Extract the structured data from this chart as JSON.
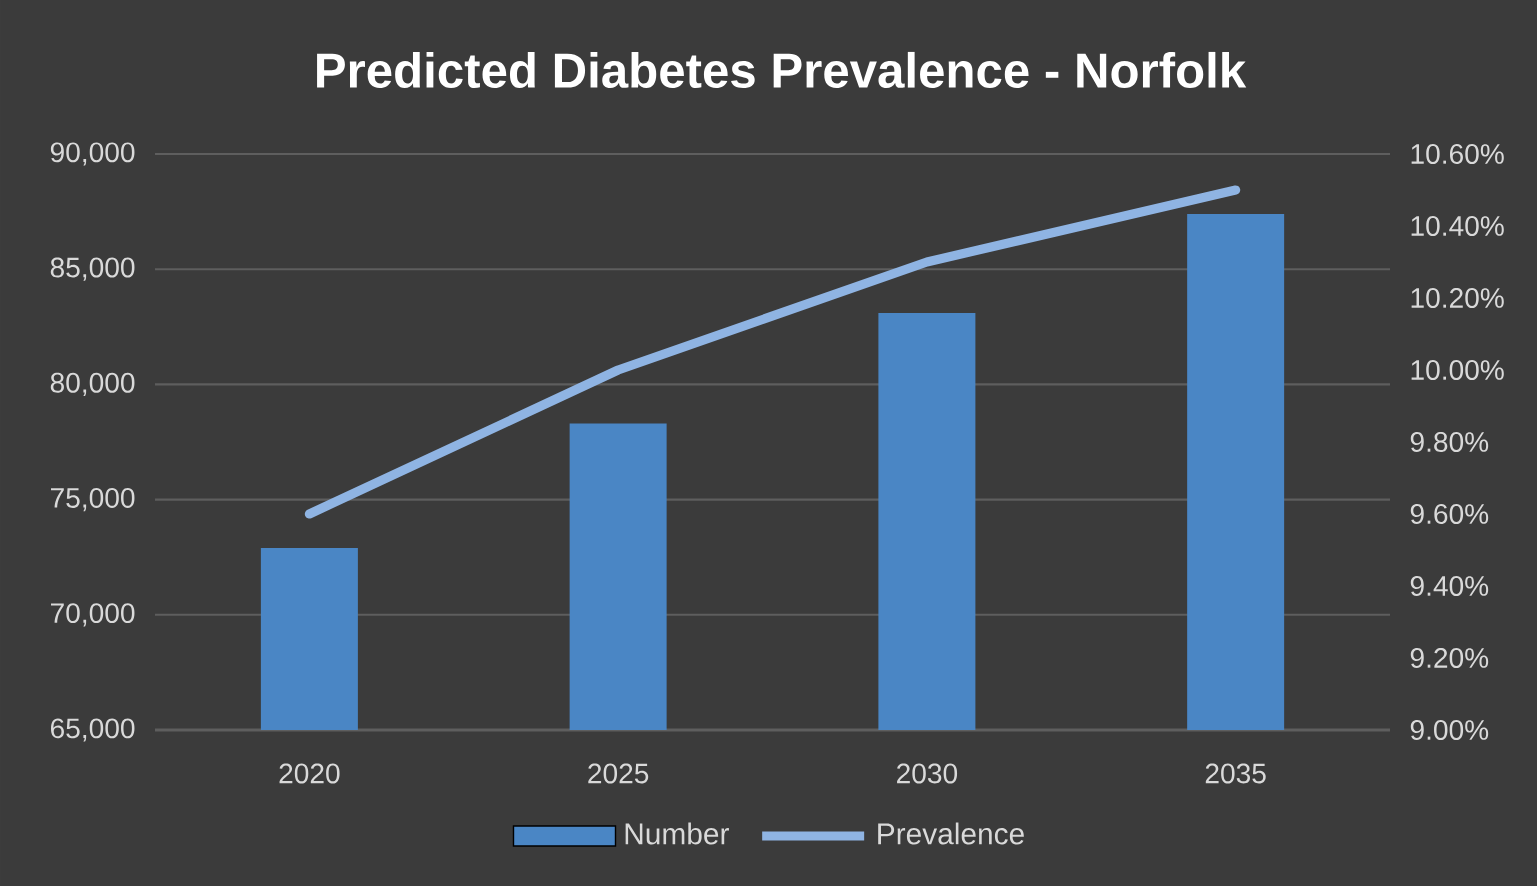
{
  "chart_data": {
    "type": "bar",
    "title": "Predicted Diabetes Prevalence - Norfolk",
    "categories": [
      "2020",
      "2025",
      "2030",
      "2035"
    ],
    "series": [
      {
        "name": "Number",
        "color": "#4a86c5",
        "values": [
          72900,
          78300,
          83100,
          87400
        ]
      },
      {
        "name": "Prevalence",
        "type": "line",
        "axis": "y2",
        "color": "#8fb4e3",
        "values": [
          9.6,
          10.0,
          10.3,
          10.5
        ]
      }
    ],
    "ylim": [
      65000,
      90000
    ],
    "yticks": [
      {
        "value": 65000,
        "label": "65,000"
      },
      {
        "value": 70000,
        "label": "70,000"
      },
      {
        "value": 75000,
        "label": "75,000"
      },
      {
        "value": 80000,
        "label": "80,000"
      },
      {
        "value": 85000,
        "label": "85,000"
      },
      {
        "value": 90000,
        "label": "90,000"
      }
    ],
    "y2lim": [
      9,
      10.6
    ],
    "y2ticks": [
      {
        "value": 9,
        "label": "9.00%"
      },
      {
        "value": 9.2,
        "label": "9.20%"
      },
      {
        "value": 9.4,
        "label": "9.40%"
      },
      {
        "value": 9.6,
        "label": "9.60%"
      },
      {
        "value": 9.8,
        "label": "9.80%"
      },
      {
        "value": 10,
        "label": "10.00%"
      },
      {
        "value": 10.2,
        "label": "10.20%"
      },
      {
        "value": 10.4,
        "label": "10.40%"
      },
      {
        "value": 10.6,
        "label": "10.60%"
      }
    ],
    "grid": "y",
    "legend": "bottom"
  }
}
